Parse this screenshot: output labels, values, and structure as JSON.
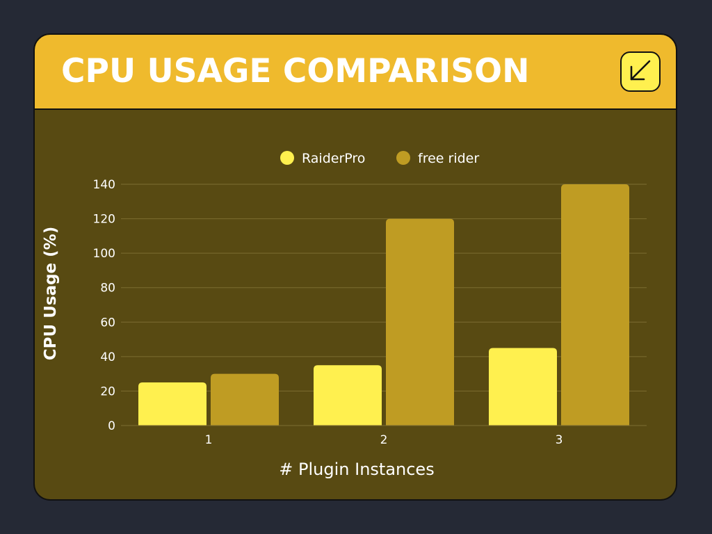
{
  "header": {
    "title": "CPU USAGE COMPARISON",
    "corner_icon": "arrow-down-left-icon"
  },
  "colors": {
    "background": "#252935",
    "header": "#efba2d",
    "panel": "#584a12",
    "series_1": "#fff04f",
    "series_2": "#bf9c23",
    "text": "#ffffff"
  },
  "chart_data": {
    "type": "bar",
    "xlabel": "# Plugin Instances",
    "ylabel": "CPU Usage (%)",
    "categories": [
      "1",
      "2",
      "3"
    ],
    "series": [
      {
        "name": "RaiderPro",
        "values": [
          25,
          35,
          45
        ]
      },
      {
        "name": "free rider",
        "values": [
          30,
          120,
          140
        ]
      }
    ],
    "ylim": [
      0,
      140
    ],
    "yticks": [
      0,
      20,
      40,
      60,
      80,
      100,
      120,
      140
    ],
    "grid": true,
    "legend": "top-center"
  }
}
